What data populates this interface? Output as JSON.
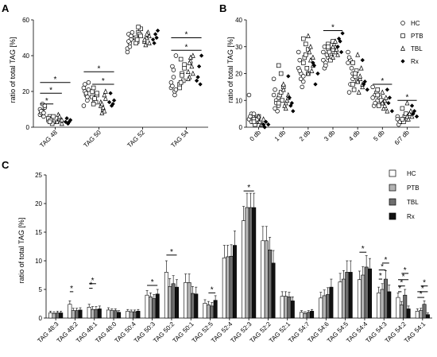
{
  "chart_data": [
    {
      "id": "A",
      "type": "scatter",
      "panel_label": "A",
      "ylabel": "ratio of total TAG [%]",
      "ylim": [
        0,
        60
      ],
      "yticks": [
        0,
        20,
        40,
        60
      ],
      "categories": [
        "TAG 48",
        "TAG 50",
        "TAG 52",
        "TAG 54"
      ],
      "groups": [
        "HC",
        "PTB",
        "TBL",
        "Rx"
      ],
      "points": {
        "TAG 48": {
          "HC": [
            7,
            9,
            11,
            8,
            6,
            10,
            13,
            12,
            9,
            8
          ],
          "PTB": [
            4,
            5,
            3,
            6,
            2,
            5,
            4,
            6,
            3
          ],
          "TBL": [
            3,
            5,
            2,
            7,
            4,
            3,
            6,
            4
          ],
          "Rx": [
            3,
            2,
            4,
            5,
            3
          ]
        },
        "TAG 50": {
          "HC": [
            22,
            18,
            25,
            20,
            15,
            12,
            19,
            21,
            24,
            17
          ],
          "PTB": [
            20,
            15,
            18,
            22,
            14,
            17,
            16,
            19,
            13
          ],
          "TBL": [
            12,
            10,
            16,
            8,
            18,
            14,
            11,
            20,
            13,
            9
          ],
          "Rx": [
            14,
            12,
            15,
            19,
            13
          ]
        },
        "TAG 52": {
          "HC": [
            44,
            47,
            50,
            52,
            49,
            42,
            45,
            53,
            48,
            51
          ],
          "PTB": [
            50,
            53,
            55,
            48,
            52,
            47,
            56,
            51,
            49
          ],
          "TBL": [
            48,
            50,
            51,
            46,
            53,
            49,
            52,
            47
          ],
          "Rx": [
            49,
            52,
            54,
            47,
            50
          ]
        },
        "TAG 54": {
          "HC": [
            22,
            28,
            40,
            34,
            20,
            25,
            32,
            21,
            23,
            18
          ],
          "PTB": [
            24,
            30,
            35,
            38,
            26,
            22,
            29,
            33,
            25
          ],
          "TBL": [
            31,
            37,
            40,
            28,
            34,
            27,
            39,
            30,
            36
          ],
          "Rx": [
            26,
            34,
            40,
            28,
            24
          ]
        }
      },
      "significance": [
        {
          "cat": "TAG 48",
          "from": 0,
          "to": 3,
          "y": 25,
          "label": "*"
        },
        {
          "cat": "TAG 48",
          "from": 0,
          "to": 2,
          "y": 19,
          "label": "*"
        },
        {
          "cat": "TAG 48",
          "from": 0,
          "to": 1,
          "y": 13,
          "label": "*"
        },
        {
          "cat": "TAG 50",
          "from": 0,
          "to": 3,
          "y": 31,
          "label": "*"
        },
        {
          "cat": "TAG 50",
          "from": 1,
          "to": 3,
          "y": 24,
          "label": "*"
        },
        {
          "cat": "TAG 54",
          "from": 0,
          "to": 3,
          "y": 50,
          "label": "*"
        },
        {
          "cat": "TAG 54",
          "from": 0,
          "to": 3,
          "y": 43,
          "label": "*"
        }
      ]
    },
    {
      "id": "B",
      "type": "scatter",
      "panel_label": "B",
      "ylabel": "ratio of total TAG [%]",
      "ylim": [
        0,
        40
      ],
      "yticks": [
        0,
        10,
        20,
        30,
        40
      ],
      "categories": [
        "0 db",
        "1 db",
        "2 db",
        "3 db",
        "4 db",
        "5 db",
        "6/7 db"
      ],
      "groups": [
        "HC",
        "PTB",
        "TBL",
        "Rx"
      ],
      "points": {
        "0 db": {
          "HC": [
            12,
            5,
            4,
            3,
            4,
            3,
            2,
            5,
            4
          ],
          "PTB": [
            3,
            2,
            4,
            1,
            3,
            2
          ],
          "TBL": [
            2,
            1,
            3,
            2,
            1,
            4
          ],
          "Rx": [
            1,
            2,
            1,
            0
          ]
        },
        "1 db": {
          "HC": [
            18,
            10,
            8,
            14,
            6,
            12,
            9,
            11,
            7
          ],
          "PTB": [
            23,
            20,
            15,
            12,
            10,
            9,
            13
          ],
          "TBL": [
            16,
            9,
            12,
            8,
            10,
            14,
            7,
            11
          ],
          "Rx": [
            19,
            8,
            6,
            11,
            9
          ]
        },
        "2 db": {
          "HC": [
            28,
            20,
            17,
            25,
            15,
            22,
            18,
            19,
            21
          ],
          "PTB": [
            33,
            31,
            29,
            26,
            22,
            24,
            27,
            20
          ],
          "TBL": [
            34,
            30,
            23,
            28,
            21,
            20,
            25,
            26
          ],
          "Rx": [
            24,
            16,
            20,
            23
          ]
        },
        "3 db": {
          "HC": [
            28,
            24,
            26,
            22,
            27,
            25,
            23,
            29,
            30
          ],
          "PTB": [
            31,
            27,
            29,
            28,
            26,
            30,
            25,
            32
          ],
          "TBL": [
            30,
            28,
            27,
            31,
            29,
            26,
            32
          ],
          "Rx": [
            30,
            32,
            35,
            33,
            28
          ]
        },
        "4 db": {
          "HC": [
            28,
            25,
            20,
            13,
            22,
            24,
            16,
            18,
            26
          ],
          "PTB": [
            24,
            19,
            17,
            14,
            21,
            16,
            20
          ],
          "TBL": [
            27,
            18,
            15,
            13,
            22,
            17,
            19,
            16
          ],
          "Rx": [
            25,
            17,
            14,
            16
          ]
        },
        "5 db": {
          "HC": [
            15,
            12,
            10,
            8,
            13,
            11,
            9,
            14
          ],
          "PTB": [
            14,
            11,
            9,
            8,
            10,
            12
          ],
          "TBL": [
            13,
            10,
            6,
            7,
            11,
            9,
            8
          ],
          "Rx": [
            14,
            11,
            6,
            9
          ]
        },
        "6/7 db": {
          "HC": [
            4,
            2,
            3,
            1,
            2,
            3,
            2
          ],
          "PTB": [
            7,
            4,
            3,
            2,
            5,
            3
          ],
          "TBL": [
            9,
            5,
            4,
            3,
            6,
            4,
            5
          ],
          "Rx": [
            8,
            6,
            4,
            5
          ]
        }
      },
      "significance": [
        {
          "cat": "3 db",
          "from": 0,
          "to": 3,
          "y": 36,
          "label": "*"
        },
        {
          "cat": "5 db",
          "from": 0,
          "to": 3,
          "y": 16,
          "label": "*"
        },
        {
          "cat": "6/7 db",
          "from": 0,
          "to": 3,
          "y": 10,
          "label": "*"
        }
      ]
    },
    {
      "id": "C",
      "type": "bar",
      "panel_label": "C",
      "ylabel": "ratio of total TAG [%]",
      "ylim": [
        0,
        25
      ],
      "yticks": [
        0,
        5,
        10,
        15,
        20,
        25
      ],
      "categories": [
        "TAG 48:3",
        "TAG 48:2",
        "TAG 48:1",
        "TAG 48:0",
        "TAG 50:4",
        "TAG 50:3",
        "TAG 50:2",
        "TAG 50:1",
        "TAG 52:5",
        "TAG 52:4",
        "TAG 52:3",
        "TAG 52:2",
        "TAG 52:1",
        "TAG 54:7",
        "TAG 54:6",
        "TAG 54:5",
        "TAG 54:4",
        "TAG 54:3",
        "TAG 54:2",
        "TAG 54:1"
      ],
      "series": [
        {
          "name": "HC",
          "color": "#ffffff",
          "values": [
            0.9,
            2.4,
            1.9,
            1.4,
            1.2,
            4.0,
            8.0,
            6.2,
            2.6,
            10.5,
            17.0,
            13.5,
            3.8,
            1.0,
            3.5,
            6.3,
            6.7,
            4.4,
            3.6,
            1.2
          ],
          "errors": [
            0.3,
            0.6,
            0.5,
            0.4,
            0.3,
            0.8,
            2.0,
            1.5,
            0.6,
            2.2,
            2.5,
            2.5,
            0.8,
            0.3,
            1.0,
            1.5,
            1.5,
            1.0,
            0.8,
            0.4
          ]
        },
        {
          "name": "PTB",
          "color": "#b3b3b3",
          "values": [
            0.8,
            1.3,
            1.5,
            1.3,
            1.1,
            3.7,
            5.5,
            6.2,
            2.3,
            10.7,
            19.3,
            13.5,
            3.8,
            0.8,
            3.9,
            6.8,
            7.5,
            5.0,
            2.3,
            1.3
          ],
          "errors": [
            0.3,
            0.4,
            0.5,
            0.3,
            0.3,
            0.7,
            1.4,
            1.5,
            0.6,
            2.0,
            2.5,
            2.5,
            0.8,
            0.3,
            1.0,
            1.5,
            1.5,
            1.0,
            0.6,
            0.4
          ]
        },
        {
          "name": "TBL",
          "color": "#6e6e6e",
          "values": [
            0.9,
            1.3,
            1.5,
            1.3,
            1.1,
            3.4,
            6.0,
            4.3,
            2.1,
            10.8,
            19.3,
            11.9,
            3.7,
            1.0,
            4.1,
            8.0,
            8.9,
            6.8,
            4.0,
            2.4
          ],
          "errors": [
            0.3,
            0.4,
            0.5,
            0.3,
            0.3,
            0.7,
            1.4,
            1.2,
            0.6,
            2.0,
            2.5,
            2.2,
            0.8,
            0.3,
            1.2,
            2.0,
            2.0,
            1.5,
            1.0,
            0.6
          ]
        },
        {
          "name": "Rx",
          "color": "#111111",
          "values": [
            0.9,
            1.4,
            1.6,
            1.0,
            1.2,
            4.2,
            5.4,
            4.2,
            3.1,
            12.7,
            19.3,
            9.6,
            3.0,
            1.2,
            5.4,
            8.0,
            8.6,
            4.6,
            1.6,
            0.6
          ],
          "errors": [
            0.3,
            0.4,
            0.5,
            0.3,
            0.3,
            0.8,
            1.3,
            1.2,
            0.8,
            2.5,
            2.5,
            2.2,
            0.7,
            0.3,
            1.4,
            2.0,
            1.8,
            1.2,
            0.5,
            0.3
          ]
        }
      ],
      "significance": [
        {
          "cat": 1,
          "from": 0,
          "to": 1,
          "y": 4.6,
          "label": "*"
        },
        {
          "cat": 2,
          "from": 0,
          "to": 1,
          "y": 5.2,
          "label": "*"
        },
        {
          "cat": 2,
          "from": 0,
          "to": 2,
          "y": 6.0,
          "label": "*"
        },
        {
          "cat": 5,
          "from": 0,
          "to": 3,
          "y": 5.7,
          "label": "*"
        },
        {
          "cat": 6,
          "from": 0,
          "to": 3,
          "y": 11.0,
          "label": "*"
        },
        {
          "cat": 8,
          "from": 1,
          "to": 3,
          "y": 4.4,
          "label": "*"
        },
        {
          "cat": 10,
          "from": 0,
          "to": 3,
          "y": 22.2,
          "label": "*"
        },
        {
          "cat": 16,
          "from": 0,
          "to": 2,
          "y": 11.5,
          "label": "*"
        },
        {
          "cat": 17,
          "from": 0,
          "to": 1,
          "y": 6.8,
          "label": "*"
        },
        {
          "cat": 17,
          "from": 0,
          "to": 2,
          "y": 8.4,
          "label": "*"
        },
        {
          "cat": 17,
          "from": 1,
          "to": 3,
          "y": 9.6,
          "label": "*"
        },
        {
          "cat": 18,
          "from": 0,
          "to": 1,
          "y": 4.6,
          "label": "*"
        },
        {
          "cat": 18,
          "from": 0,
          "to": 2,
          "y": 5.6,
          "label": "*"
        },
        {
          "cat": 18,
          "from": 0,
          "to": 3,
          "y": 6.7,
          "label": "*"
        },
        {
          "cat": 18,
          "from": 1,
          "to": 3,
          "y": 7.8,
          "label": "*"
        },
        {
          "cat": 19,
          "from": 0,
          "to": 2,
          "y": 3.6,
          "label": "*"
        },
        {
          "cat": 19,
          "from": 0,
          "to": 3,
          "y": 4.6,
          "label": "*"
        },
        {
          "cat": 19,
          "from": 1,
          "to": 3,
          "y": 5.6,
          "label": "*"
        }
      ]
    }
  ],
  "legend_scatter": [
    {
      "label": "HC",
      "marker": "circle"
    },
    {
      "label": "PTB",
      "marker": "square"
    },
    {
      "label": "TBL",
      "marker": "triangle"
    },
    {
      "label": "Rx",
      "marker": "diamond"
    }
  ],
  "legend_bar": [
    {
      "label": "HC",
      "color": "#ffffff"
    },
    {
      "label": "PTB",
      "color": "#b3b3b3"
    },
    {
      "label": "TBL",
      "color": "#6e6e6e"
    },
    {
      "label": "Rx",
      "color": "#111111"
    }
  ]
}
